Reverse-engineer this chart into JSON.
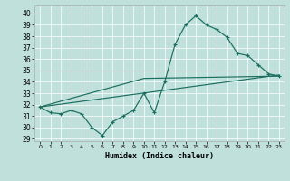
{
  "xlabel": "Humidex (Indice chaleur)",
  "bg_color": "#c0e0dc",
  "line_color": "#1a6e5e",
  "xlim": [
    -0.5,
    23.5
  ],
  "ylim": [
    28.8,
    40.7
  ],
  "yticks": [
    29,
    30,
    31,
    32,
    33,
    34,
    35,
    36,
    37,
    38,
    39,
    40
  ],
  "xticks": [
    0,
    1,
    2,
    3,
    4,
    5,
    6,
    7,
    8,
    9,
    10,
    11,
    12,
    13,
    14,
    15,
    16,
    17,
    18,
    19,
    20,
    21,
    22,
    23
  ],
  "main_x": [
    0,
    1,
    2,
    3,
    4,
    5,
    6,
    7,
    8,
    9,
    10,
    11,
    12,
    13,
    14,
    15,
    16,
    17,
    18,
    19,
    20,
    21,
    22,
    23
  ],
  "main_y": [
    31.8,
    31.3,
    31.2,
    31.5,
    31.2,
    30.0,
    29.3,
    30.5,
    31.0,
    31.5,
    33.0,
    31.3,
    34.0,
    37.3,
    39.0,
    39.8,
    39.0,
    38.6,
    37.9,
    36.5,
    36.3,
    35.5,
    34.7,
    34.5
  ],
  "trend1_x": [
    0,
    23
  ],
  "trend1_y": [
    31.8,
    34.6
  ],
  "trend2_x": [
    0,
    10,
    23
  ],
  "trend2_y": [
    31.8,
    34.3,
    34.5
  ]
}
